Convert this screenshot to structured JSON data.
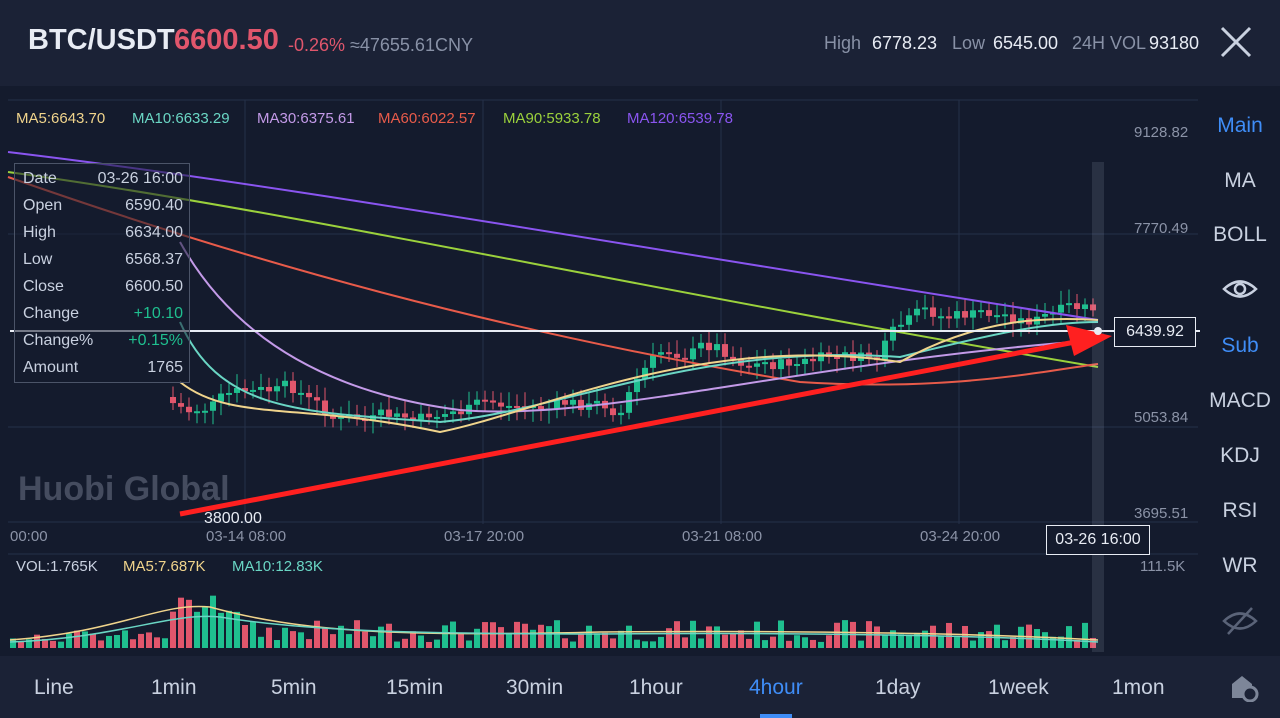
{
  "header": {
    "pair": "BTC/USDT",
    "price": "6600.50",
    "change_pct": "-0.26%",
    "cny": "≈47655.61CNY",
    "high_label": "High",
    "high_value": "6778.23",
    "low_label": "Low",
    "low_value": "6545.00",
    "vol_label": "24H VOL",
    "vol_value": "93180"
  },
  "ma_legend": [
    {
      "label": "MA5:6643.70",
      "color": "#f0d48c"
    },
    {
      "label": "MA10:6633.29",
      "color": "#6ad6c4"
    },
    {
      "label": "MA30:6375.61",
      "color": "#c39ae8"
    },
    {
      "label": "MA60:6022.57",
      "color": "#e85b4a"
    },
    {
      "label": "MA90:5933.78",
      "color": "#9bd13c"
    },
    {
      "label": "MA120:6539.78",
      "color": "#8a55f0"
    }
  ],
  "y_axis": [
    "9128.82",
    "7770.49",
    "5053.84",
    "3695.51"
  ],
  "x_axis": [
    "00:00",
    "03-14 08:00",
    "03-17 20:00",
    "03-21 08:00",
    "03-24 20:00"
  ],
  "crosshair": {
    "price": "6439.92",
    "time": "03-26 16:00"
  },
  "low_marker": "3800.00",
  "watermark": "Huobi Global",
  "info_box": [
    {
      "label": "Date",
      "value": "03-26 16:00"
    },
    {
      "label": "Open",
      "value": "6590.40"
    },
    {
      "label": "High",
      "value": "6634.00"
    },
    {
      "label": "Low",
      "value": "6568.37"
    },
    {
      "label": "Close",
      "value": "6600.50"
    },
    {
      "label": "Change",
      "value": "+10.10"
    },
    {
      "label": "Change%",
      "value": "+0.15%"
    },
    {
      "label": "Amount",
      "value": "1765"
    }
  ],
  "volume_legend": {
    "vol": "VOL:1.765K",
    "ma5": "MA5:7.687K",
    "ma10": "MA10:12.83K",
    "max": "111.5K"
  },
  "sidebar": {
    "main": "Main",
    "ma": "MA",
    "boll": "BOLL",
    "sub": "Sub",
    "macd": "MACD",
    "kdj": "KDJ",
    "rsi": "RSI",
    "wr": "WR"
  },
  "timeframes": [
    "Line",
    "1min",
    "5min",
    "15min",
    "30min",
    "1hour",
    "4hour",
    "1day",
    "1week",
    "1mon"
  ],
  "active_timeframe": "4hour",
  "colors": {
    "up": "#1fbf8f",
    "down": "#e0566c",
    "accent": "#3f8df7",
    "trend_arrow": "#ff2020"
  }
}
